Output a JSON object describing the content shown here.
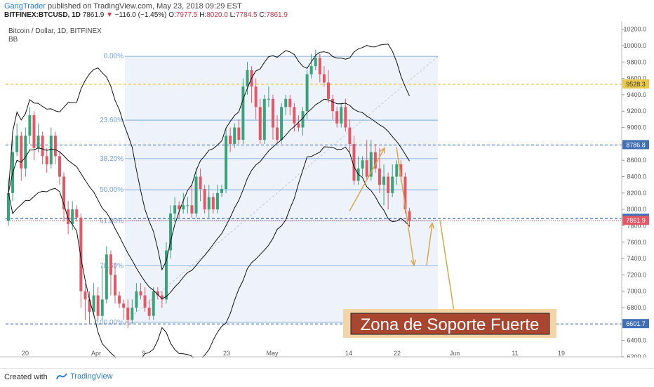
{
  "header": {
    "user": "GangTrader",
    "published": "published on TradingView.com, May 23, 2018 09:29 EST",
    "symbol": "BITFINEX:BTCUSD, 1D",
    "last": "7861.9",
    "change": "−116.0 (−1.45%)",
    "o_label": "O:",
    "o_val": "7977.5",
    "h_label": "H:",
    "h_val": "8020.0",
    "l_label": "L:",
    "l_val": "7784.5",
    "c_label": "C:",
    "c_val": "7861.9"
  },
  "legend": {
    "title": "Bitcoin / Dollar, 1D, BITFINEX",
    "indicator": "BB"
  },
  "footer": {
    "created": "Created with",
    "brand": "TradingView"
  },
  "colors": {
    "up": "#3aa37a",
    "down": "#e25866",
    "fib": "#6f9fd8",
    "annotation": "#d8a84a"
  },
  "chart_data": {
    "type": "candlestick",
    "y_ticks": [
      "10200.0",
      "10000.0",
      "9800.0",
      "9600.0",
      "9400.0",
      "9200.0",
      "9000.0",
      "8800.0",
      "8600.0",
      "8400.0",
      "8200.0",
      "8000.0",
      "7800.0",
      "7600.0",
      "7400.0",
      "7200.0",
      "7000.0",
      "6800.0",
      "6600.0",
      "6400.0",
      "6200.0"
    ],
    "x_ticks": [
      "20",
      "Apr",
      "9",
      "23",
      "May",
      "14",
      "22",
      "Jun",
      "11",
      "19"
    ],
    "ylim": [
      6200,
      10300
    ],
    "price_labels": [
      {
        "value": 9528.3,
        "text": "9528.3",
        "color": "#e8c84a"
      },
      {
        "value": 8786.8,
        "text": "8786.8",
        "color": "#3f6fb5"
      },
      {
        "value": 7887.7,
        "text": "7887.7",
        "color": "#3f6fb5"
      },
      {
        "value": 7861.9,
        "text": "7861.9",
        "color": "#e25866"
      },
      {
        "value": 6601.7,
        "text": "6601.7",
        "color": "#3f6fb5"
      }
    ],
    "fib_levels": [
      {
        "label": "0.00%",
        "value": 9870
      },
      {
        "label": "23.60%",
        "value": 9090
      },
      {
        "label": "38.20%",
        "value": 8620
      },
      {
        "label": "50.00%",
        "value": 8240
      },
      {
        "label": "61.80%",
        "value": 7860
      },
      {
        "label": "78.60%",
        "value": 7310
      },
      {
        "label": "100.00%",
        "value": 6620
      }
    ],
    "annotation": "Zona de Soporte Fuerte",
    "candles": [
      [
        7860,
        8200,
        8380,
        7800
      ],
      [
        8200,
        8700,
        8850,
        8100
      ],
      [
        8700,
        8900,
        9050,
        8650
      ],
      [
        8900,
        8500,
        8950,
        8350
      ],
      [
        8500,
        8900,
        9000,
        8400
      ],
      [
        8900,
        9150,
        9250,
        8800
      ],
      [
        9150,
        8750,
        9200,
        8600
      ],
      [
        8750,
        8900,
        9050,
        8700
      ],
      [
        8900,
        8650,
        8950,
        8550
      ],
      [
        8650,
        8550,
        8750,
        8450
      ],
      [
        8550,
        8900,
        9000,
        8500
      ],
      [
        8900,
        8650,
        8950,
        8550
      ],
      [
        8650,
        8400,
        8700,
        8300
      ],
      [
        8400,
        8000,
        8450,
        7850
      ],
      [
        8000,
        7820,
        8100,
        7700
      ],
      [
        7820,
        8000,
        8100,
        7750
      ],
      [
        8000,
        7900,
        8050,
        7850
      ],
      [
        7900,
        7000,
        7950,
        6800
      ],
      [
        7000,
        6900,
        7100,
        6650
      ],
      [
        6900,
        6750,
        7000,
        6600
      ],
      [
        6750,
        6950,
        7100,
        6700
      ],
      [
        6950,
        6700,
        7050,
        6650
      ],
      [
        6700,
        6900,
        7300,
        6650
      ],
      [
        6900,
        7450,
        7550,
        6850
      ],
      [
        7450,
        7200,
        7500,
        6950
      ],
      [
        7200,
        6950,
        7350,
        6850
      ],
      [
        6950,
        6850,
        7000,
        6800
      ],
      [
        6850,
        6800,
        6900,
        6650
      ],
      [
        6800,
        6650,
        6900,
        6550
      ],
      [
        6650,
        6800,
        6900,
        6600
      ],
      [
        6800,
        7000,
        7100,
        6750
      ],
      [
        7000,
        6950,
        7100,
        6900
      ],
      [
        6950,
        6800,
        7050,
        6750
      ],
      [
        6800,
        6700,
        6900,
        6650
      ],
      [
        6700,
        7000,
        7050,
        6650
      ],
      [
        7000,
        6950,
        7050,
        6900
      ],
      [
        6950,
        6900,
        7000,
        6800
      ],
      [
        6900,
        7500,
        7600,
        6850
      ],
      [
        7500,
        7950,
        8050,
        7400
      ],
      [
        7950,
        8050,
        8150,
        7850
      ],
      [
        8050,
        8000,
        8100,
        7900
      ],
      [
        8000,
        8050,
        8200,
        7950
      ],
      [
        8050,
        8050,
        8150,
        7950
      ],
      [
        8050,
        7950,
        8300,
        7900
      ],
      [
        7950,
        8400,
        8500,
        7900
      ],
      [
        8400,
        8250,
        8500,
        8100
      ],
      [
        8250,
        8000,
        8300,
        7950
      ],
      [
        8000,
        8150,
        8300,
        7900
      ],
      [
        8150,
        8000,
        8200,
        7950
      ],
      [
        8000,
        8200,
        8300,
        7950
      ],
      [
        8200,
        8250,
        8300,
        8150
      ],
      [
        8250,
        8900,
        9000,
        8200
      ],
      [
        8900,
        8800,
        9000,
        8700
      ],
      [
        8800,
        9000,
        9050,
        8750
      ],
      [
        9000,
        8850,
        9100,
        8800
      ],
      [
        8850,
        9500,
        9600,
        8800
      ],
      [
        9500,
        9700,
        9800,
        9400
      ],
      [
        9700,
        9500,
        9750,
        9300
      ],
      [
        9500,
        9250,
        9600,
        9100
      ],
      [
        9250,
        8850,
        9350,
        8800
      ],
      [
        8850,
        9350,
        9400,
        8800
      ],
      [
        9350,
        9350,
        9500,
        9250
      ],
      [
        9350,
        9000,
        9400,
        8850
      ],
      [
        9000,
        8850,
        9150,
        8800
      ],
      [
        8850,
        9250,
        9300,
        8800
      ],
      [
        9250,
        9350,
        9400,
        9150
      ],
      [
        9350,
        9250,
        9400,
        9150
      ],
      [
        9250,
        9050,
        9300,
        8950
      ],
      [
        9050,
        9000,
        9150,
        8950
      ],
      [
        9000,
        9200,
        9250,
        8900
      ],
      [
        9200,
        9650,
        9700,
        9100
      ],
      [
        9650,
        9750,
        9900,
        9600
      ],
      [
        9750,
        9850,
        9950,
        9700
      ],
      [
        9850,
        9650,
        9900,
        9550
      ],
      [
        9650,
        9550,
        9750,
        9500
      ],
      [
        9550,
        9350,
        9700,
        9300
      ],
      [
        9350,
        9200,
        9400,
        9100
      ],
      [
        9200,
        9050,
        9250,
        9000
      ],
      [
        9050,
        9250,
        9300,
        9000
      ],
      [
        9250,
        9000,
        9350,
        8950
      ],
      [
        9000,
        8800,
        9100,
        8700
      ],
      [
        8800,
        8350,
        8900,
        8300
      ],
      [
        8350,
        8500,
        8650,
        8300
      ],
      [
        8500,
        8600,
        8650,
        8400
      ],
      [
        8600,
        8400,
        8850,
        8350
      ],
      [
        8400,
        8700,
        8850,
        8350
      ],
      [
        8700,
        8500,
        8800,
        8450
      ],
      [
        8500,
        8300,
        8750,
        8200
      ],
      [
        8300,
        8400,
        8550,
        8050
      ],
      [
        8400,
        8200,
        8450,
        8000
      ],
      [
        8200,
        8400,
        8550,
        8150
      ],
      [
        8400,
        8550,
        8600,
        8300
      ],
      [
        8550,
        8400,
        8600,
        8350
      ],
      [
        8400,
        8000,
        8450,
        7950
      ],
      [
        7977.5,
        7861.9,
        8020,
        7784.5
      ]
    ]
  }
}
